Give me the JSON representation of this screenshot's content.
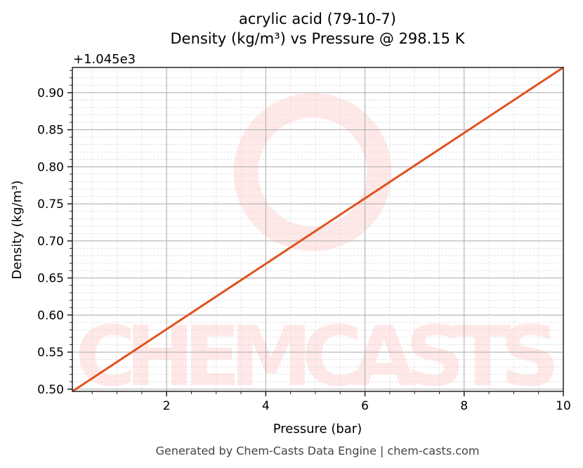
{
  "chart_data": {
    "type": "line",
    "title": "acrylic acid (79-10-7)",
    "subtitle": "Density (kg/m³) vs Pressure @ 298.15 K",
    "xlabel": "Pressure (bar)",
    "ylabel": "Density (kg/m³)",
    "y_offset_label": "+1.045e3",
    "y_offset": 1045,
    "xlim": [
      0.1,
      10
    ],
    "ylim": [
      0.497,
      0.934
    ],
    "x_ticks": [
      2,
      4,
      6,
      8,
      10
    ],
    "x_tick_labels": [
      "2",
      "4",
      "6",
      "8",
      "10"
    ],
    "y_ticks": [
      0.5,
      0.55,
      0.6,
      0.65,
      0.7,
      0.75,
      0.8,
      0.85,
      0.9
    ],
    "y_tick_labels": [
      "0.50",
      "0.55",
      "0.60",
      "0.65",
      "0.70",
      "0.75",
      "0.80",
      "0.85",
      "0.90"
    ],
    "x_minor_step": 0.5,
    "y_minor_step": 0.01,
    "grid": true,
    "series": [
      {
        "x": [
          0.1,
          10
        ],
        "y": [
          0.497,
          0.934
        ],
        "color": "#e0521f"
      }
    ],
    "watermark": "CHEMCASTS",
    "footer": "Generated by Chem-Casts Data Engine | chem-casts.com"
  }
}
